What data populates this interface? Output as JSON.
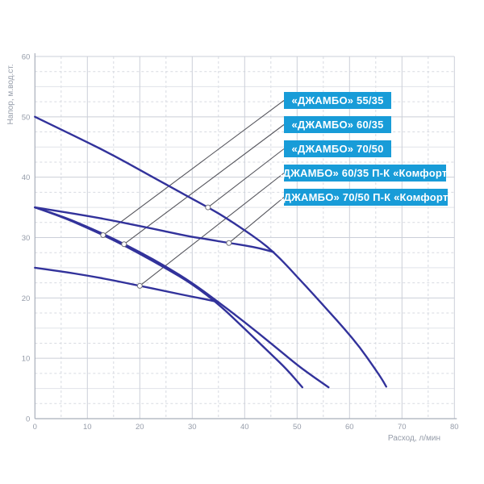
{
  "colors": {
    "accent": "#189cd8",
    "curve": "#32329b",
    "grid_major": "#cbcfd8",
    "grid_minor_dashed": "#d7dae1",
    "grid_half_solid": "#e0e3e9",
    "axis": "#a9afbb",
    "tick_text": "#959ca9",
    "leader_line": "#55555c",
    "callout_text": "#ffffff",
    "marker_fill": "#ffffff",
    "marker_stroke": "#70707a"
  },
  "chart_data": {
    "type": "line",
    "title": "",
    "xlabel": "Расход, л/мин",
    "ylabel": "Напор, м.вод.ст.",
    "xlim": [
      0,
      80
    ],
    "ylim": [
      0,
      60
    ],
    "x_ticks": [
      0,
      10,
      20,
      30,
      40,
      50,
      60,
      70,
      80
    ],
    "y_ticks": [
      0,
      10,
      20,
      30,
      40,
      50,
      60
    ],
    "grid": {
      "vertical_minor_step": 5,
      "horizontal_minor_step": 2.5,
      "note": "major gridlines solid, minor dashed, half-step (5) horizontals light solid"
    },
    "legend_position": "callout boxes upper-right with leader lines to marker points on curves",
    "series": [
      {
        "name": "«ДЖАМБО» 55/35",
        "marker": [
          13,
          30.4
        ],
        "points": [
          [
            0,
            35
          ],
          [
            5,
            33.5
          ],
          [
            10,
            31.6
          ],
          [
            15,
            29.6
          ],
          [
            20,
            27.3
          ],
          [
            25,
            24.9
          ],
          [
            30,
            22.3
          ],
          [
            35,
            19.0
          ],
          [
            40,
            14.9
          ],
          [
            45,
            10.7
          ],
          [
            48,
            8.2
          ],
          [
            51,
            5.2
          ]
        ]
      },
      {
        "name": "«ДЖАМБО» 60/35",
        "marker": [
          17,
          28.9
        ],
        "points": [
          [
            0,
            35
          ],
          [
            5,
            33.6
          ],
          [
            10,
            31.8
          ],
          [
            15,
            29.8
          ],
          [
            20,
            27.6
          ],
          [
            25,
            25.2
          ],
          [
            30,
            22.5
          ],
          [
            35,
            19.3
          ],
          [
            40,
            16.0
          ],
          [
            45,
            12.5
          ],
          [
            50,
            8.9
          ],
          [
            53,
            7.0
          ],
          [
            56,
            5.2
          ]
        ]
      },
      {
        "name": "«ДЖАМБО» 70/50",
        "marker": [
          33,
          35
        ],
        "points": [
          [
            0,
            50
          ],
          [
            5,
            47.9
          ],
          [
            10,
            45.8
          ],
          [
            15,
            43.6
          ],
          [
            20,
            41.2
          ],
          [
            25,
            38.8
          ],
          [
            30,
            36.4
          ],
          [
            33,
            35.0
          ],
          [
            36,
            33.5
          ],
          [
            40,
            31.2
          ],
          [
            43,
            29.4
          ],
          [
            45.5,
            27.6
          ],
          [
            48,
            25.4
          ],
          [
            50,
            23.5
          ],
          [
            53,
            20.7
          ],
          [
            56,
            17.8
          ],
          [
            59,
            14.9
          ],
          [
            62,
            11.8
          ],
          [
            64.5,
            8.7
          ],
          [
            66,
            6.8
          ],
          [
            67,
            5.3
          ]
        ]
      },
      {
        "name": "«ДЖАМБО» 60/35 П-К «Комфорт»",
        "marker": [
          20,
          22
        ],
        "points": [
          [
            0,
            25
          ],
          [
            5,
            24.4
          ],
          [
            10,
            23.7
          ],
          [
            15,
            22.9
          ],
          [
            20,
            22.0
          ],
          [
            25,
            21.1
          ],
          [
            30,
            20.2
          ],
          [
            33,
            19.7
          ],
          [
            35,
            19.3
          ]
        ]
      },
      {
        "name": "«ДЖАМБО» 70/50 П-К «Комфорт»",
        "marker": [
          37,
          29.1
        ],
        "points": [
          [
            0,
            35
          ],
          [
            5,
            34.3
          ],
          [
            10,
            33.6
          ],
          [
            15,
            32.8
          ],
          [
            20,
            31.9
          ],
          [
            25,
            31.0
          ],
          [
            30,
            30.1
          ],
          [
            33,
            29.7
          ],
          [
            37,
            29.1
          ],
          [
            40,
            28.7
          ],
          [
            43,
            28.2
          ],
          [
            45.5,
            27.6
          ]
        ]
      }
    ]
  }
}
